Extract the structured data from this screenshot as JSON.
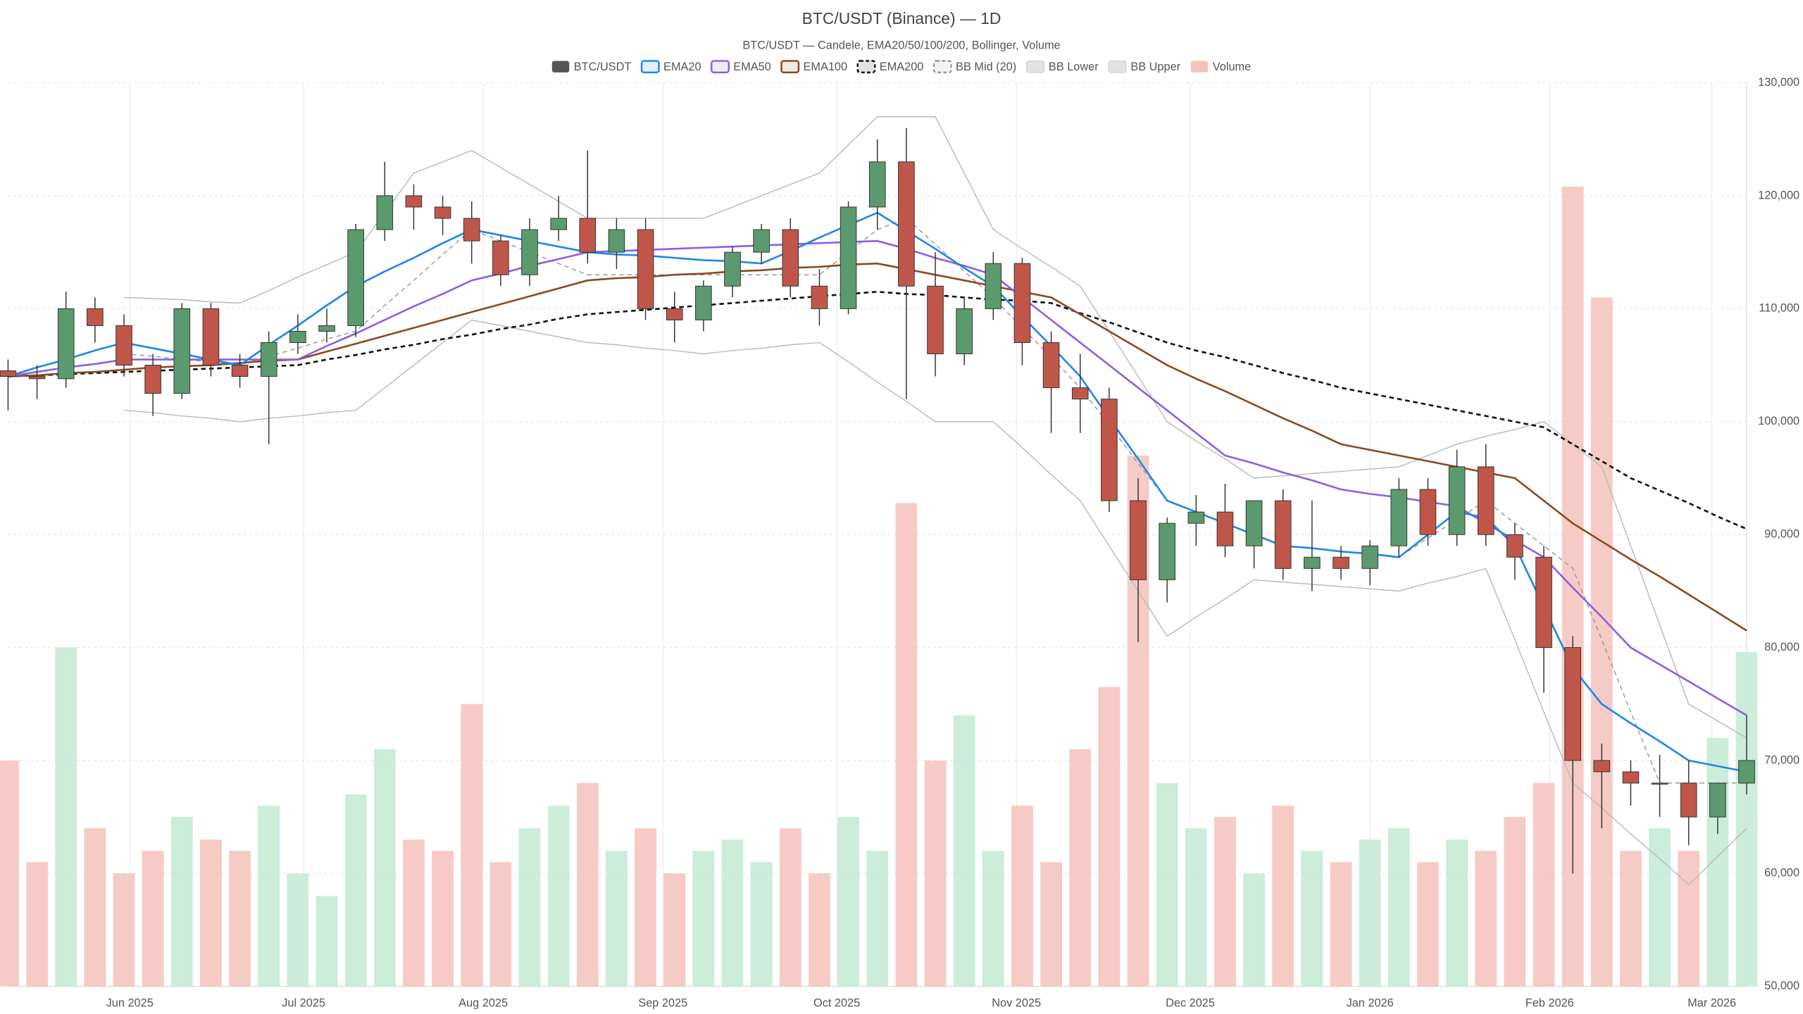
{
  "chart_data": {
    "type": "candlestick",
    "title": "BTC/USDT (Binance) — 1D",
    "subtitle": "BTC/USDT — Candele, EMA20/50/100/200, Bollinger, Volume",
    "x": [
      0,
      5,
      10,
      15,
      20,
      25,
      30,
      35,
      40,
      45,
      50,
      55,
      60,
      65,
      70,
      75,
      80,
      85,
      90,
      95,
      100,
      105,
      110,
      115,
      120,
      125,
      130,
      135,
      140,
      145,
      150,
      155,
      160,
      165,
      170,
      175,
      180,
      185,
      190,
      195,
      200,
      205,
      210,
      215,
      220,
      225,
      230,
      235,
      240,
      245,
      250,
      255,
      260,
      265,
      270,
      275,
      280,
      285,
      290,
      295,
      300
    ],
    "xlim": [
      0,
      300
    ],
    "xticks": [
      {
        "value": 21,
        "label": "Jun 2025"
      },
      {
        "value": 51,
        "label": "Jul 2025"
      },
      {
        "value": 82,
        "label": "Aug 2025"
      },
      {
        "value": 113,
        "label": "Sep 2025"
      },
      {
        "value": 143,
        "label": "Oct 2025"
      },
      {
        "value": 174,
        "label": "Nov 2025"
      },
      {
        "value": 204,
        "label": "Dec 2025"
      },
      {
        "value": 235,
        "label": "Jan 2026"
      },
      {
        "value": 266,
        "label": "Feb 2026"
      },
      {
        "value": 294,
        "label": "Mar 2026"
      }
    ],
    "ylim": [
      50000,
      130000
    ],
    "yticks": [
      {
        "value": 50000,
        "label": "50,000"
      },
      {
        "value": 60000,
        "label": "60,000"
      },
      {
        "value": 70000,
        "label": "70,000"
      },
      {
        "value": 80000,
        "label": "80,000"
      },
      {
        "value": 90000,
        "label": "90,000"
      },
      {
        "value": 100000,
        "label": "100,000"
      },
      {
        "value": 110000,
        "label": "110,000"
      },
      {
        "value": 120000,
        "label": "120,000"
      },
      {
        "value": 130000,
        "label": "130,000"
      }
    ],
    "grid": true,
    "series": [
      {
        "name": "Volume",
        "type": "bar",
        "color": "#f4c2bb",
        "up_color": "#c2ead4",
        "down_color": "#f4c2bb",
        "values": [
          70000,
          61000,
          80000,
          64000,
          60000,
          62000,
          65000,
          63000,
          62000,
          66000,
          60000,
          58000,
          67000,
          71000,
          63000,
          62000,
          75000,
          61000,
          64000,
          66000,
          68000,
          62000,
          64000,
          60000,
          62000,
          63000,
          61000,
          64000,
          60000,
          65000,
          62000,
          92800,
          70000,
          74000,
          62000,
          66000,
          61000,
          71000,
          76500,
          97000,
          68000,
          64000,
          65000,
          60000,
          66000,
          62000,
          61000,
          63000,
          64000,
          61000,
          63000,
          62000,
          65000,
          68000,
          120800,
          111000,
          62000,
          64000,
          62000,
          72000,
          79600
        ]
      },
      {
        "name": "BB Upper",
        "type": "line",
        "color": "#bbbbbb",
        "values": [
          null,
          null,
          null,
          null,
          111000,
          110900,
          110800,
          110600,
          110500,
          111600,
          112800,
          113900,
          115000,
          118500,
          122000,
          123000,
          124000,
          122500,
          121000,
          119500,
          118000,
          118000,
          118000,
          118000,
          118000,
          119000,
          120000,
          121000,
          122000,
          124500,
          127000,
          127000,
          127000,
          122000,
          117000,
          115300,
          113700,
          112000,
          108000,
          104000,
          100000,
          98300,
          96700,
          95000,
          95200,
          95400,
          95600,
          95800,
          96000,
          97000,
          98000,
          98700,
          99300,
          100000,
          98000,
          96000,
          89000,
          82000,
          75000,
          73500,
          72000
        ]
      },
      {
        "name": "BB Lower",
        "type": "line",
        "color": "#bbbbbb",
        "values": [
          null,
          null,
          null,
          null,
          101000,
          100800,
          100500,
          100300,
          100000,
          100300,
          100500,
          100800,
          101000,
          103000,
          105000,
          107000,
          109000,
          108500,
          108000,
          107500,
          107000,
          106800,
          106500,
          106300,
          106000,
          106300,
          106500,
          106800,
          107000,
          105300,
          103500,
          101800,
          100000,
          100000,
          100000,
          97700,
          95300,
          93000,
          89000,
          85000,
          81000,
          82700,
          84300,
          86000,
          85800,
          85600,
          85400,
          85200,
          85000,
          85700,
          86300,
          87000,
          80700,
          74300,
          68000,
          65800,
          63500,
          61300,
          59000,
          61500,
          64000
        ]
      },
      {
        "name": "BB Mid (20)",
        "type": "line",
        "color": "#999999",
        "dash": true,
        "values": [
          null,
          null,
          null,
          null,
          106000,
          105800,
          105500,
          105300,
          105000,
          105800,
          106500,
          107300,
          108000,
          110300,
          112500,
          114800,
          117000,
          116000,
          115000,
          114000,
          113000,
          113000,
          113000,
          113000,
          113000,
          113000,
          113000,
          113000,
          113000,
          115000,
          117000,
          118000,
          115700,
          113300,
          111000,
          108300,
          105700,
          103000,
          99700,
          96300,
          93000,
          92000,
          91000,
          90000,
          89000,
          88800,
          88500,
          88300,
          88000,
          89700,
          91300,
          93000,
          91000,
          89000,
          87000,
          80700,
          74300,
          68000,
          68000,
          68000,
          68000
        ]
      },
      {
        "name": "EMA200",
        "type": "line",
        "color": "#111111",
        "dash": true,
        "values": [
          104000,
          104100,
          104200,
          104300,
          104400,
          104500,
          104600,
          104700,
          104800,
          104900,
          105000,
          105500,
          105900,
          106400,
          106800,
          107300,
          107700,
          108200,
          108600,
          109100,
          109500,
          109700,
          109900,
          110100,
          110300,
          110500,
          110700,
          110900,
          111100,
          111300,
          111500,
          111300,
          111200,
          111000,
          110800,
          110700,
          110500,
          109600,
          108800,
          107900,
          107000,
          106300,
          105700,
          105000,
          104300,
          103700,
          103000,
          102500,
          102000,
          101500,
          101000,
          100500,
          100000,
          99500,
          98000,
          96500,
          95000,
          93900,
          92800,
          91600,
          90500
        ]
      },
      {
        "name": "EMA100",
        "type": "line",
        "color": "#8b4a1e",
        "values": [
          104000,
          104100,
          104300,
          104400,
          104600,
          104800,
          104900,
          105000,
          105200,
          105400,
          105500,
          106200,
          106900,
          107600,
          108300,
          109000,
          109700,
          110400,
          111100,
          111800,
          112500,
          112700,
          112800,
          113000,
          113100,
          113300,
          113400,
          113600,
          113700,
          113900,
          114000,
          113500,
          113000,
          112500,
          112000,
          111500,
          111000,
          109500,
          108000,
          106500,
          105000,
          103800,
          102700,
          101500,
          100300,
          99200,
          98000,
          97500,
          97000,
          96500,
          96000,
          95500,
          95000,
          93000,
          91000,
          89400,
          87800,
          86300,
          84700,
          83100,
          81500
        ]
      },
      {
        "name": "EMA50",
        "type": "line",
        "color": "#8e5fe0",
        "values": [
          104000,
          104400,
          104800,
          105100,
          105500,
          105500,
          105500,
          105500,
          105500,
          105500,
          105500,
          106700,
          107800,
          109000,
          110200,
          111300,
          112500,
          113100,
          113800,
          114400,
          115000,
          115100,
          115200,
          115300,
          115400,
          115500,
          115600,
          115700,
          115800,
          115900,
          116000,
          115300,
          114500,
          113800,
          113000,
          111000,
          109000,
          107000,
          105000,
          103000,
          101000,
          99000,
          97000,
          96300,
          95500,
          94800,
          94000,
          93600,
          93300,
          92900,
          92500,
          91000,
          89500,
          88000,
          85300,
          82700,
          80000,
          78500,
          77000,
          75500,
          74000
        ]
      },
      {
        "name": "EMA20",
        "type": "line",
        "color": "#1e88e5",
        "values": [
          104000,
          104800,
          105500,
          106300,
          107000,
          106500,
          106000,
          105500,
          105000,
          106800,
          108500,
          110300,
          112000,
          113300,
          114500,
          115800,
          117000,
          116500,
          116000,
          115500,
          115000,
          114800,
          114700,
          114500,
          114300,
          114200,
          114000,
          115100,
          116300,
          117400,
          118500,
          116900,
          115300,
          113600,
          112000,
          109300,
          106700,
          104000,
          100300,
          96700,
          93000,
          92000,
          91000,
          90000,
          89000,
          88800,
          88500,
          88300,
          88000,
          90000,
          92000,
          91500,
          89000,
          83600,
          78200,
          75000,
          73300,
          71700,
          70000,
          69500,
          69000
        ]
      },
      {
        "name": "BTC/USDT",
        "type": "candlestick",
        "color": "#555555",
        "up_color": "#5b9a6e",
        "down_color": "#c0564a",
        "open": [
          104500,
          104000,
          103800,
          110000,
          108500,
          105000,
          102500,
          110000,
          105000,
          104000,
          107000,
          108000,
          108500,
          117000,
          120000,
          119000,
          118000,
          116000,
          113000,
          117000,
          118000,
          115000,
          117000,
          110000,
          109000,
          112000,
          115000,
          117000,
          112000,
          110000,
          119000,
          123000,
          112000,
          106000,
          110000,
          114000,
          107000,
          103000,
          102000,
          93000,
          86000,
          91000,
          92000,
          89000,
          93000,
          87000,
          88000,
          87000,
          89000,
          94000,
          90000,
          96000,
          90000,
          88000,
          80000,
          70000,
          69000,
          68000,
          68000,
          65000,
          68000
        ],
        "high": [
          105500,
          105000,
          111500,
          111000,
          109500,
          106000,
          110500,
          110500,
          106000,
          108000,
          109500,
          110000,
          117500,
          123000,
          121000,
          120000,
          119500,
          116500,
          118000,
          120000,
          124000,
          118000,
          118000,
          111500,
          112500,
          115500,
          117500,
          118000,
          113500,
          119500,
          125000,
          126000,
          115000,
          111000,
          115000,
          114500,
          108000,
          106000,
          103000,
          95000,
          91500,
          93500,
          94500,
          93000,
          94000,
          93000,
          89000,
          89500,
          95000,
          95000,
          97500,
          98000,
          91000,
          89000,
          81000,
          71500,
          70000,
          70500,
          70000,
          68000,
          74000
        ],
        "low": [
          101000,
          102000,
          103000,
          107000,
          104000,
          100500,
          102000,
          104000,
          103000,
          98000,
          106000,
          107000,
          107500,
          116000,
          117000,
          116500,
          114000,
          112000,
          112000,
          116000,
          114000,
          113500,
          109000,
          107000,
          108000,
          111000,
          114000,
          111000,
          108500,
          109500,
          117000,
          102000,
          104000,
          105000,
          109000,
          105000,
          99000,
          99000,
          92000,
          80500,
          84000,
          89000,
          88000,
          87000,
          86000,
          85000,
          86000,
          85500,
          88000,
          89000,
          89000,
          89000,
          86000,
          76000,
          60000,
          64000,
          66000,
          65000,
          62500,
          63500,
          67000
        ],
        "close": [
          104000,
          103800,
          110000,
          108500,
          105000,
          102500,
          110000,
          105000,
          104000,
          107000,
          108000,
          108500,
          117000,
          120000,
          119000,
          118000,
          116000,
          113000,
          117000,
          118000,
          115000,
          117000,
          110000,
          109000,
          112000,
          115000,
          117000,
          112000,
          110000,
          119000,
          123000,
          112000,
          106000,
          110000,
          114000,
          107000,
          103000,
          102000,
          93000,
          86000,
          91000,
          92000,
          89000,
          93000,
          87000,
          88000,
          87000,
          89000,
          94000,
          90000,
          96000,
          90000,
          88000,
          80000,
          70000,
          69000,
          68000,
          68000,
          65000,
          68000,
          70000
        ]
      }
    ]
  }
}
